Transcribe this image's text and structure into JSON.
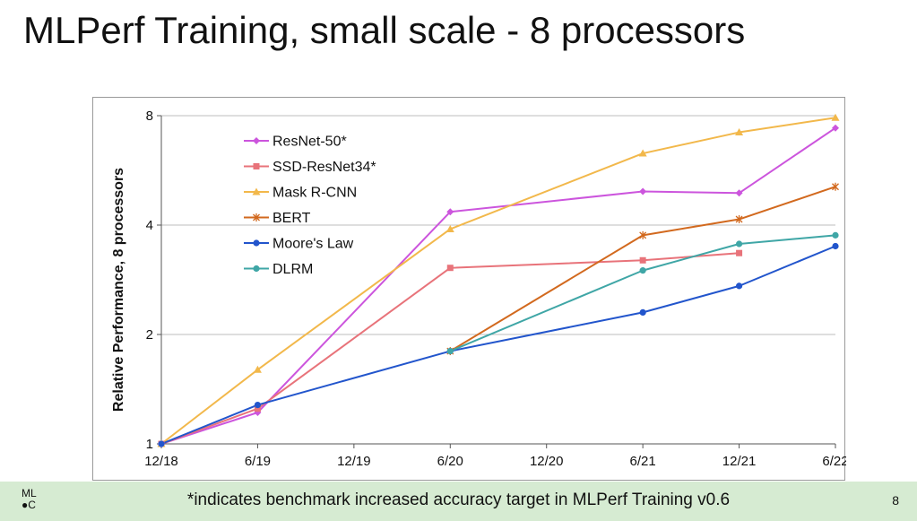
{
  "slide": {
    "title": "MLPerf Training, small scale - 8 processors",
    "footnote": "*indicates benchmark increased accuracy target in MLPerf Training v0.6",
    "page_number": "8",
    "logo_text": "ML\n●C"
  },
  "chart_data": {
    "type": "line",
    "title": "",
    "xlabel": "",
    "ylabel": "Relative Performance, 8 processors",
    "y_scale": "log2",
    "ylim": [
      1,
      8
    ],
    "y_ticks": [
      "1",
      "2",
      "4",
      "8"
    ],
    "categories": [
      "12/18",
      "6/19",
      "12/19",
      "6/20",
      "12/20",
      "6/21",
      "12/21",
      "6/22"
    ],
    "grid": "horizontal",
    "legend_position": "top-left",
    "series": [
      {
        "name": "ResNet-50*",
        "color": "#cc55dd",
        "marker": "diamond",
        "values": [
          1.0,
          1.22,
          null,
          4.35,
          null,
          4.95,
          4.9,
          7.4
        ]
      },
      {
        "name": "SSD-ResNet34*",
        "color": "#e8737a",
        "marker": "square",
        "values": [
          1.0,
          1.25,
          null,
          3.05,
          null,
          3.2,
          3.35,
          null
        ]
      },
      {
        "name": "Mask R-CNN",
        "color": "#f2b84b",
        "marker": "triangle",
        "values": [
          1.0,
          1.6,
          null,
          3.9,
          null,
          6.3,
          7.2,
          7.9
        ]
      },
      {
        "name": "BERT",
        "color": "#d2691e",
        "marker": "star",
        "values": [
          null,
          null,
          null,
          1.8,
          null,
          3.75,
          4.15,
          5.1
        ]
      },
      {
        "name": "Moore's Law",
        "color": "#2255cc",
        "marker": "circle",
        "values": [
          1.0,
          1.28,
          null,
          1.8,
          null,
          2.3,
          2.72,
          3.5
        ]
      },
      {
        "name": "DLRM",
        "color": "#3fa6a6",
        "marker": "circle",
        "values": [
          null,
          null,
          null,
          1.8,
          null,
          3.0,
          3.55,
          3.75
        ]
      }
    ]
  }
}
